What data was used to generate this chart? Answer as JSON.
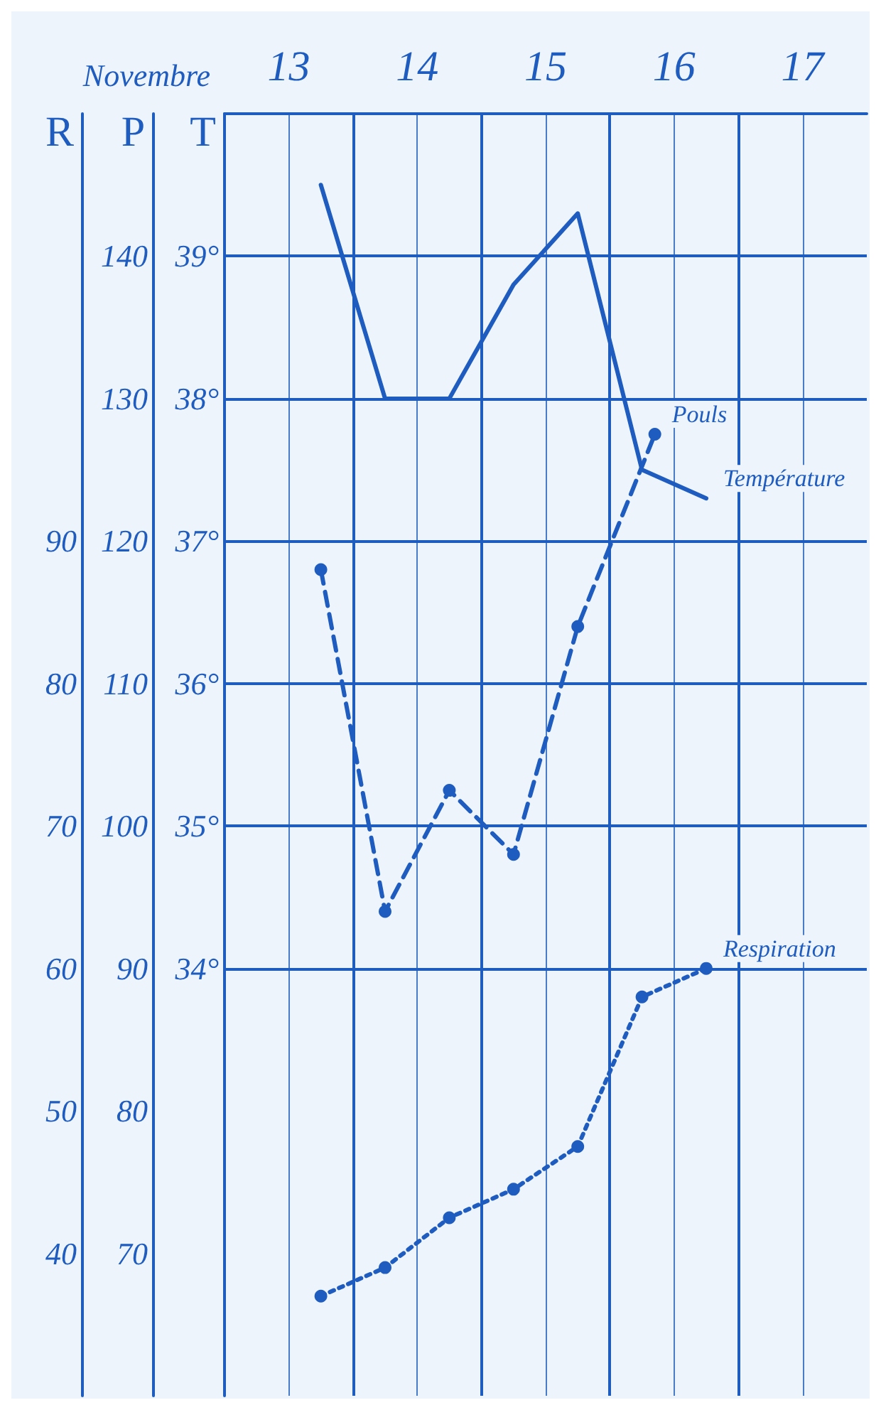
{
  "chart_data": {
    "type": "line",
    "xlabel": "Novembre",
    "ylabel": "T",
    "y2label": "P",
    "y3label": "R",
    "xlim": [
      12.5,
      17.5
    ],
    "xticks": [
      13,
      14,
      15,
      16,
      17
    ],
    "ylim": [
      31,
      40
    ],
    "yticks": [
      {
        "value": 34,
        "label": "34°"
      },
      {
        "value": 35,
        "label": "35°"
      },
      {
        "value": 36,
        "label": "36°"
      },
      {
        "value": 37,
        "label": "37°"
      },
      {
        "value": 38,
        "label": "38°"
      },
      {
        "value": 39,
        "label": "39°"
      }
    ],
    "y2lim": [
      60,
      150
    ],
    "y2ticks": [
      70,
      80,
      90,
      100,
      110,
      120,
      130,
      140
    ],
    "y3lim": [
      30,
      120
    ],
    "y3ticks": [
      40,
      50,
      60,
      70,
      80,
      90
    ],
    "grid": true,
    "legend": false,
    "series": [
      {
        "name": "Température",
        "color": "#1f5cbf",
        "x": [
          13.25,
          13.75,
          14.25,
          14.75,
          15.25,
          15.75,
          16.25
        ],
        "values": [
          39.5,
          38.0,
          38.0,
          38.8,
          39.3,
          37.5,
          37.3
        ],
        "marker": "none",
        "line_style": "solid"
      },
      {
        "name": "Pouls",
        "axis": "y2",
        "color": "#1f5cbf",
        "x": [
          13.25,
          13.75,
          14.25,
          14.75,
          15.25,
          15.85
        ],
        "values": [
          118,
          94,
          102.5,
          98,
          114,
          127.5
        ],
        "marker": "circle",
        "line_style": "dashed"
      },
      {
        "name": "Respiration",
        "axis": "y3",
        "color": "#1f5cbf",
        "x": [
          13.25,
          13.75,
          14.25,
          14.75,
          15.25,
          15.75,
          16.25
        ],
        "values": [
          37,
          39,
          42.5,
          44.5,
          47.5,
          58,
          60
        ],
        "marker": "circle",
        "line_style": "dotted"
      }
    ]
  }
}
